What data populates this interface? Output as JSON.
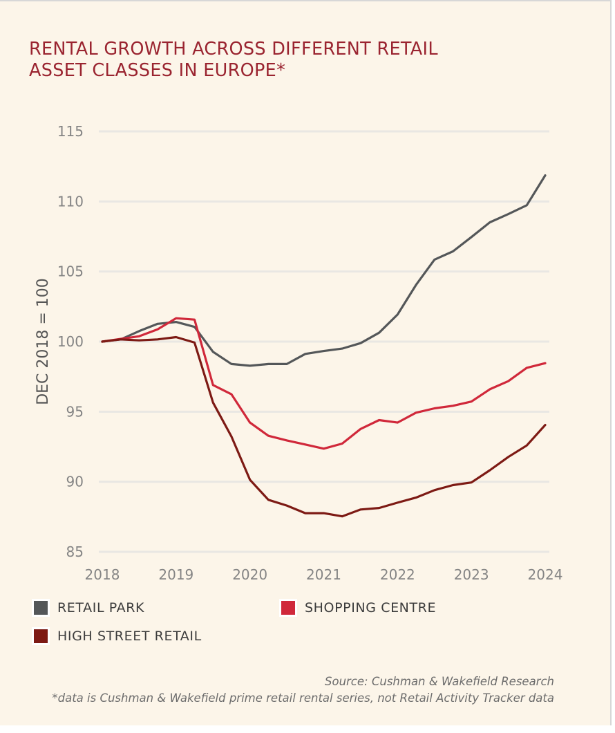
{
  "chart_data": {
    "type": "line",
    "title": "RENTAL GROWTH ACROSS DIFFERENT RETAIL ASSET CLASSES IN EUROPE*",
    "title_lines": [
      "RENTAL GROWTH ACROSS DIFFERENT RETAIL",
      "ASSET CLASSES IN EUROPE*"
    ],
    "xlabel": "",
    "ylabel": "DEC 2018 = 100",
    "xlim": [
      2018,
      2024
    ],
    "ylim": [
      85,
      115
    ],
    "x_ticks": [
      "2018",
      "2019",
      "2020",
      "2021",
      "2022",
      "2023",
      "2024"
    ],
    "y_ticks": [
      "115",
      "110",
      "105",
      "100",
      "95",
      "90",
      "85"
    ],
    "grid": "horizontal",
    "legend_position": "bottom",
    "x": [
      2018,
      2018.25,
      2018.5,
      2018.75,
      2019,
      2019.25,
      2019.5,
      2019.75,
      2020,
      2020.25,
      2020.5,
      2020.75,
      2021,
      2021.25,
      2021.5,
      2021.75,
      2022,
      2022.25,
      2022.5,
      2022.75,
      2023,
      2023.25,
      2023.5,
      2023.75,
      2024
    ],
    "series": [
      {
        "name": "RETAIL PARK",
        "color": "#545759",
        "values": [
          100.0,
          100.16,
          100.75,
          101.27,
          101.4,
          101.05,
          99.27,
          98.4,
          98.28,
          98.4,
          98.4,
          99.12,
          99.33,
          99.5,
          99.89,
          100.63,
          101.93,
          104.04,
          105.85,
          106.44,
          107.46,
          108.51,
          109.1,
          109.73,
          111.86
        ]
      },
      {
        "name": "SHOPPING CENTRE",
        "color": "#d0283a",
        "values": [
          100.0,
          100.19,
          100.38,
          100.88,
          101.67,
          101.57,
          96.9,
          96.24,
          94.22,
          93.28,
          92.95,
          92.66,
          92.36,
          92.72,
          93.77,
          94.4,
          94.22,
          94.93,
          95.24,
          95.42,
          95.72,
          96.6,
          97.18,
          98.13,
          98.46
        ]
      },
      {
        "name": "HIGH STREET RETAIL",
        "color": "#7d1a14",
        "values": [
          100.0,
          100.16,
          100.09,
          100.16,
          100.32,
          99.93,
          95.65,
          93.22,
          90.14,
          88.71,
          88.3,
          87.76,
          87.76,
          87.53,
          88.02,
          88.13,
          88.51,
          88.87,
          89.4,
          89.76,
          89.95,
          90.82,
          91.77,
          92.59,
          94.05
        ]
      }
    ],
    "source": "Source: Cushman & Wakefield Research",
    "footnote": "*data is Cushman & Wakefield prime retail rental series, not Retail Activity Tracker data"
  },
  "colors": {
    "title": "#9a2430",
    "background": "#fcf5e9",
    "gridline": "#e9e7e3"
  }
}
